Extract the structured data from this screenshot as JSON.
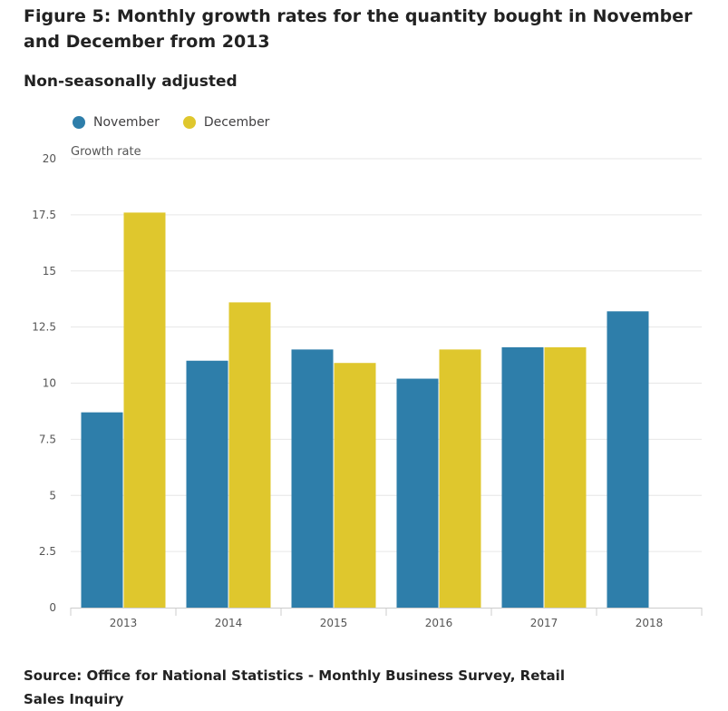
{
  "title": "Figure 5: Monthly growth rates for the quantity bought in November and December from 2013",
  "subtitle": "Non-seasonally adjusted",
  "source": "Source: Office for National Statistics - Monthly Business Survey, Retail Sales Inquiry",
  "colors": {
    "november": "#2e7eaa",
    "december": "#dfc72d",
    "grid": "#e6e6e6",
    "axis_text": "#555555"
  },
  "chart_data": {
    "type": "bar",
    "categories": [
      "2013",
      "2014",
      "2015",
      "2016",
      "2017",
      "2018"
    ],
    "series": [
      {
        "name": "November",
        "values": [
          8.7,
          11.0,
          11.5,
          10.2,
          11.6,
          13.2
        ]
      },
      {
        "name": "December",
        "values": [
          17.6,
          13.6,
          10.9,
          11.5,
          11.6,
          null
        ]
      }
    ],
    "ylabel": "Growth rate",
    "ylim": [
      0,
      20
    ],
    "yticks": [
      "0",
      "2.5",
      "5",
      "7.5",
      "10",
      "12.5",
      "15",
      "17.5",
      "20"
    ],
    "grid": true,
    "legend": "top-left"
  }
}
